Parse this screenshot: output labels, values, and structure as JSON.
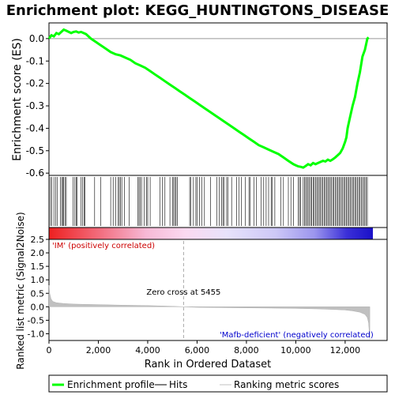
{
  "chart_data": [
    {
      "type": "line",
      "title": "Enrichment plot: KEGG_HUNTINGTONS_DISEASE",
      "ylabel": "Enrichment score (ES)",
      "ylim": [
        -0.61,
        0.07
      ],
      "yticks": [
        0.0,
        -0.1,
        -0.2,
        -0.3,
        -0.4,
        -0.5,
        -0.6
      ],
      "ytick_labels": [
        "0.0",
        "-0.1",
        "-0.2",
        "-0.3",
        "-0.4",
        "-0.5",
        "-0.6"
      ],
      "series": [
        {
          "name": "Enrichment profile",
          "color": "#00ff00",
          "x": [
            0,
            100,
            200,
            300,
            400,
            500,
            600,
            700,
            800,
            900,
            1000,
            1100,
            1200,
            1300,
            1400,
            1500,
            1700,
            1900,
            2100,
            2300,
            2500,
            2700,
            2900,
            3100,
            3300,
            3500,
            3700,
            3900,
            4100,
            4300,
            4500,
            4700,
            4900,
            5100,
            5300,
            5500,
            5700,
            5900,
            6100,
            6300,
            6500,
            6700,
            6900,
            7100,
            7300,
            7500,
            7700,
            7900,
            8100,
            8300,
            8500,
            8700,
            8900,
            9100,
            9300,
            9500,
            9700,
            9900,
            10000,
            10100,
            10200,
            10300,
            10400,
            10500,
            10600,
            10700,
            10800,
            10900,
            11000,
            11100,
            11200,
            11300,
            11400,
            11500,
            11600,
            11700,
            11800,
            11900,
            12000,
            12050,
            12100,
            12200,
            12300,
            12400,
            12500,
            12600,
            12700,
            12800,
            12900,
            12950
          ],
          "y": [
            0.0,
            0.015,
            0.01,
            0.025,
            0.02,
            0.03,
            0.04,
            0.035,
            0.03,
            0.025,
            0.03,
            0.032,
            0.027,
            0.03,
            0.025,
            0.02,
            0.0,
            -0.015,
            -0.03,
            -0.045,
            -0.06,
            -0.07,
            -0.075,
            -0.085,
            -0.095,
            -0.11,
            -0.12,
            -0.13,
            -0.145,
            -0.16,
            -0.175,
            -0.19,
            -0.205,
            -0.22,
            -0.235,
            -0.25,
            -0.265,
            -0.28,
            -0.295,
            -0.31,
            -0.325,
            -0.34,
            -0.355,
            -0.37,
            -0.385,
            -0.4,
            -0.415,
            -0.43,
            -0.445,
            -0.46,
            -0.475,
            -0.485,
            -0.495,
            -0.505,
            -0.515,
            -0.53,
            -0.545,
            -0.56,
            -0.565,
            -0.57,
            -0.572,
            -0.575,
            -0.568,
            -0.56,
            -0.565,
            -0.555,
            -0.56,
            -0.555,
            -0.55,
            -0.545,
            -0.548,
            -0.54,
            -0.545,
            -0.538,
            -0.53,
            -0.52,
            -0.51,
            -0.49,
            -0.46,
            -0.44,
            -0.4,
            -0.35,
            -0.3,
            -0.26,
            -0.2,
            -0.15,
            -0.08,
            -0.05,
            0.0,
            0.005
          ]
        }
      ]
    },
    {
      "type": "bar",
      "name": "hits",
      "xlim": [
        0,
        13700
      ],
      "color": "#000000",
      "positions": [
        60,
        110,
        200,
        280,
        340,
        470,
        520,
        570,
        600,
        650,
        700,
        980,
        1050,
        1100,
        1140,
        1300,
        1360,
        1420,
        1450,
        1850,
        2100,
        2500,
        2600,
        2700,
        2800,
        2850,
        2900,
        2950,
        3050,
        3250,
        3600,
        3650,
        3700,
        3750,
        3850,
        3950,
        4000,
        4100,
        4500,
        4600,
        4700,
        4900,
        5000,
        5050,
        5100,
        5150,
        5200,
        5700,
        5750,
        5850,
        5950,
        6000,
        6100,
        6200,
        6300,
        6550,
        6800,
        6900,
        7000,
        7050,
        7100,
        7200,
        7250,
        7400,
        7600,
        7700,
        7800,
        7950,
        8100,
        8150,
        8300,
        8400,
        8600,
        8700,
        8800,
        8900,
        9000,
        9050,
        9150,
        9400,
        9500,
        9700,
        9800,
        9900,
        10100,
        10150,
        10200,
        10300,
        10350,
        10400,
        10450,
        10500,
        10550,
        10600,
        10650,
        10700,
        10750,
        10800,
        10850,
        10900,
        10950,
        11000,
        11050,
        11100,
        11150,
        11200,
        11250,
        11300,
        11350,
        11400,
        11450,
        11500,
        11550,
        11600,
        11650,
        11700,
        11750,
        11800,
        11850,
        11900,
        11950,
        12000,
        12050,
        12100,
        12150,
        12200,
        12250,
        12300,
        12350,
        12400,
        12450,
        12500,
        12550,
        12600,
        12650,
        12700,
        12750,
        12800,
        12850,
        12900
      ]
    },
    {
      "type": "area",
      "xlabel": "Rank in Ordered Dataset",
      "ylabel": "Ranked list metric (Signal2Noise)",
      "xlim": [
        0,
        13700
      ],
      "ylim": [
        -1.25,
        2.5
      ],
      "xticks": [
        0,
        2000,
        4000,
        6000,
        8000,
        10000,
        12000
      ],
      "xtick_labels": [
        "0",
        "2,000",
        "4,000",
        "6,000",
        "8,000",
        "10,000",
        "12,000"
      ],
      "yticks": [
        2.5,
        2.0,
        1.5,
        1.0,
        0.5,
        0.0,
        -0.5,
        -1.0
      ],
      "ytick_labels": [
        "2.5",
        "2.0",
        "1.5",
        "1.0",
        "0.5",
        "0.0",
        "-0.5",
        "-1.0"
      ],
      "x": [
        0,
        30,
        80,
        150,
        300,
        600,
        1000,
        1500,
        2000,
        3000,
        4000,
        5000,
        5455,
        6000,
        7000,
        8000,
        9000,
        10000,
        11000,
        11500,
        12000,
        12300,
        12600,
        12800,
        12900,
        12950,
        13000
      ],
      "values": [
        0.8,
        0.5,
        0.3,
        0.2,
        0.15,
        0.12,
        0.1,
        0.09,
        0.08,
        0.06,
        0.045,
        0.02,
        0.0,
        -0.02,
        -0.03,
        -0.04,
        -0.05,
        -0.06,
        -0.08,
        -0.1,
        -0.12,
        -0.15,
        -0.2,
        -0.28,
        -0.4,
        -0.6,
        -1.2
      ],
      "color": "#c0c0c0",
      "annotations": {
        "zero_cross": "Zero cross at 5455",
        "zero_cross_x": 5455,
        "positive": "'IM' (positively correlated)",
        "negative": "'Mafb-deficient' (negatively correlated)",
        "positive_color": "#cc0000",
        "negative_color": "#0000cc"
      }
    }
  ],
  "legend": {
    "placement": "bottom",
    "items": [
      {
        "label": "Enrichment profile",
        "color": "#00ff00"
      },
      {
        "label": "Hits",
        "color": "#000000"
      },
      {
        "label": "Ranking metric scores",
        "color": "#c0c0c0"
      }
    ]
  }
}
